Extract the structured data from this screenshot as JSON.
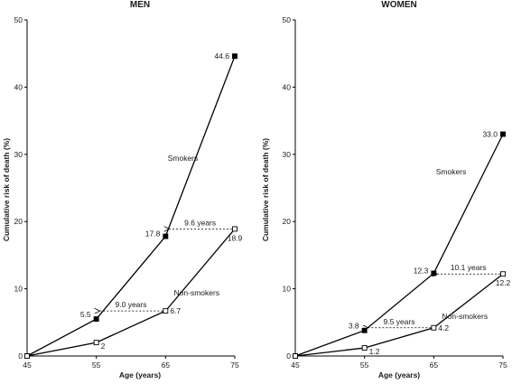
{
  "chart_data": [
    {
      "type": "line",
      "title": "MEN",
      "xlabel": "Age (years)",
      "ylabel": "Cumulative risk of death (%)",
      "x": [
        45,
        55,
        65,
        75
      ],
      "xticks": [
        "45",
        "55",
        "65",
        "75"
      ],
      "ylim": [
        0,
        50
      ],
      "yticks": [
        "0",
        "10",
        "20",
        "30",
        "40",
        "50"
      ],
      "grid": false,
      "series": [
        {
          "name": "Smokers",
          "marker": "filled-square",
          "values": [
            0,
            5.5,
            17.8,
            44.6
          ],
          "labels": [
            "",
            "5.5",
            "17.8",
            "44.6"
          ]
        },
        {
          "name": "Non-smokers",
          "marker": "open-square",
          "values": [
            0,
            2,
            6.7,
            18.9
          ],
          "labels": [
            "",
            "2",
            "6.7",
            "18.9"
          ]
        }
      ],
      "annotations": [
        {
          "text": "9.0 years",
          "y": 6.7,
          "x_from": 65,
          "x_to": 55
        },
        {
          "text": "9.6 years",
          "y": 18.9,
          "x_from": 75,
          "x_to": 65
        }
      ]
    },
    {
      "type": "line",
      "title": "WOMEN",
      "xlabel": "Age (years)",
      "ylabel": "Cumulative risk of death (%)",
      "x": [
        45,
        55,
        65,
        75
      ],
      "xticks": [
        "45",
        "55",
        "65",
        "75"
      ],
      "ylim": [
        0,
        50
      ],
      "yticks": [
        "0",
        "10",
        "20",
        "30",
        "40",
        "50"
      ],
      "grid": false,
      "series": [
        {
          "name": "Smokers",
          "marker": "filled-square",
          "values": [
            0,
            3.8,
            12.3,
            33.0
          ],
          "labels": [
            "",
            "3.8",
            "12.3",
            "33.0"
          ]
        },
        {
          "name": "Non-smokers",
          "marker": "open-square",
          "values": [
            0,
            1.2,
            4.2,
            12.2
          ],
          "labels": [
            "",
            "1.2",
            "4.2",
            "12.2"
          ]
        }
      ],
      "annotations": [
        {
          "text": "9.5 years",
          "y": 4.2,
          "x_from": 65,
          "x_to": 55
        },
        {
          "text": "10.1 years",
          "y": 12.2,
          "x_from": 75,
          "x_to": 65
        }
      ]
    }
  ]
}
